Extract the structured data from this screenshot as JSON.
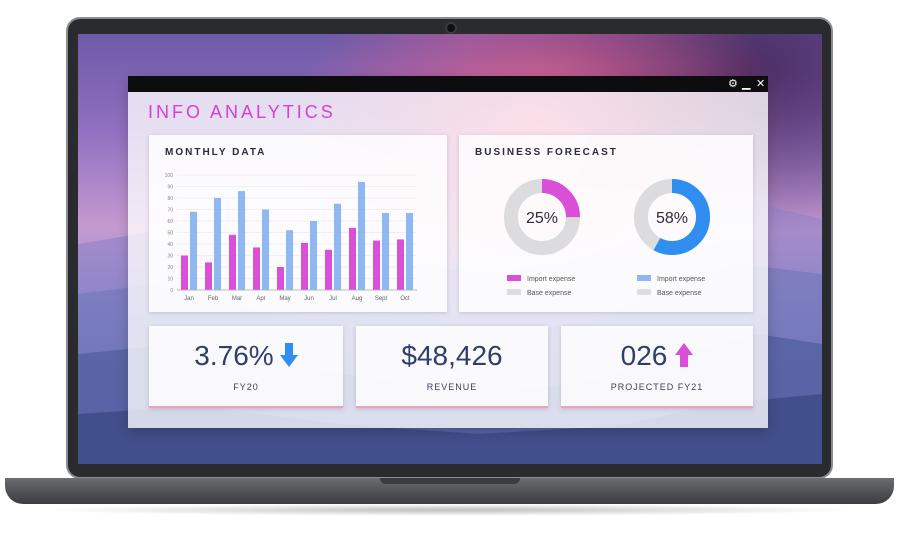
{
  "window": {
    "settings_icon": "⚙",
    "minimize_icon": "▁",
    "close_icon": "✕"
  },
  "app_title": "INFO ANALYTICS",
  "monthly": {
    "title": "MONTHLY DATA",
    "chart_data": {
      "type": "bar",
      "categories": [
        "Jan",
        "Feb",
        "Mar",
        "Apr",
        "May",
        "Jun",
        "Jul",
        "Aug",
        "Sept",
        "Oct"
      ],
      "series": [
        {
          "values": [
            30,
            24,
            48,
            37,
            20,
            41,
            35,
            54,
            43,
            44
          ],
          "color": "#d94fd8"
        },
        {
          "values": [
            68,
            80,
            86,
            70,
            52,
            60,
            75,
            94,
            67,
            67
          ],
          "color": "#8fb8f0"
        }
      ],
      "yticks": [
        0,
        10,
        20,
        30,
        40,
        50,
        60,
        70,
        80,
        90,
        100
      ],
      "ylim": [
        0,
        100
      ]
    }
  },
  "forecast": {
    "title": "BUSINESS FORECAST",
    "chart_data": [
      {
        "type": "pie",
        "label": "25%",
        "value": 25,
        "color": "#d94fd8",
        "legend": [
          "Import expense",
          "Base expense"
        ]
      },
      {
        "type": "pie",
        "label": "58%",
        "value": 58,
        "color": "#2f8ef0",
        "legend": [
          "Import expense",
          "Base expense"
        ]
      }
    ],
    "legend_colors": {
      "import_left": "#d94fd8",
      "import_right": "#8fb8f0",
      "base": "#dedede"
    }
  },
  "kpis": [
    {
      "value": "3.76%",
      "label": "FY20",
      "arrow": "down",
      "arrow_color": "#2f8ef0"
    },
    {
      "value": "$48,426",
      "label": "REVENUE"
    },
    {
      "value": "026",
      "label": "PROJECTED FY21",
      "arrow": "up",
      "arrow_color": "#d94fd8"
    }
  ]
}
